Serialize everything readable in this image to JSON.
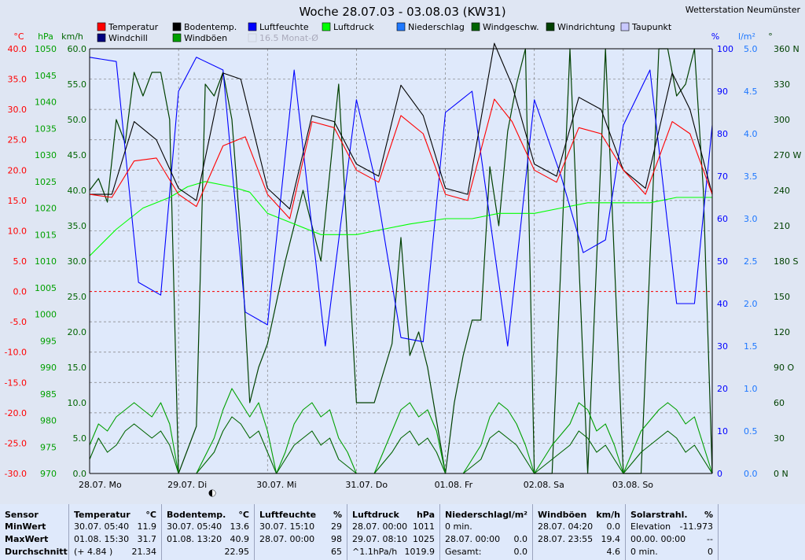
{
  "header": {
    "title": "Woche 28.07.03 - 03.08.03 (KW31)",
    "station": "Wetterstation Neumünster"
  },
  "legend": [
    {
      "label": "Temperatur",
      "color": "#ff0000"
    },
    {
      "label": "Bodentemp.",
      "color": "#000000"
    },
    {
      "label": "Luftfeuchte",
      "color": "#0000ff"
    },
    {
      "label": "Luftdruck",
      "color": "#00ff00"
    },
    {
      "label": "Niederschlag",
      "color": "#1e78ff"
    },
    {
      "label": "Windgeschw.",
      "color": "#006400"
    },
    {
      "label": "Windrichtung",
      "color": "#004000"
    },
    {
      "label": "Taupunkt",
      "color": "#c8c8ff"
    },
    {
      "label": "Windchill",
      "color": "#000080"
    },
    {
      "label": "Windböen",
      "color": "#00a000"
    },
    {
      "label": "16.5 Monat-Ø",
      "color": "#e8e8ee"
    }
  ],
  "axis_units": {
    "temp": "°C",
    "press": "hPa",
    "wind": "km/h",
    "hum": "%",
    "rain": "l/m²",
    "dir": "°"
  },
  "colors": {
    "plot_bg": "#dfe9fb",
    "grid": "#808080",
    "temp_axis": "#ff0000",
    "press_axis": "#00a000",
    "wind_axis": "#006400",
    "hum_axis": "#0000ff",
    "rain_axis": "#1e78ff",
    "dir_axis": "#004000"
  },
  "chart_data": {
    "type": "line",
    "x_range_days": [
      0,
      7
    ],
    "x_ticks": [
      {
        "day": 0,
        "label": "28.07.  Mo"
      },
      {
        "day": 1,
        "label": "29.07.  Di"
      },
      {
        "day": 2,
        "label": "30.07.  Mi"
      },
      {
        "day": 3,
        "label": "31.07.  Do"
      },
      {
        "day": 4,
        "label": "01.08.  Fr"
      },
      {
        "day": 5,
        "label": "02.08.  Sa"
      },
      {
        "day": 6,
        "label": "03.08.  So"
      }
    ],
    "axes": {
      "temp": {
        "range": [
          -30,
          40
        ],
        "ticks": [
          "40.0",
          "35.0",
          "30.0",
          "25.0",
          "20.0",
          "15.0",
          "10.0",
          "5.0",
          "0.0",
          "-5.0",
          "-10.0",
          "-15.0",
          "-20.0",
          "-25.0",
          "-30.0"
        ]
      },
      "press": {
        "range": [
          970,
          1050
        ],
        "ticks": [
          "1050",
          "1045",
          "1040",
          "1035",
          "1030",
          "1025",
          "1020",
          "1015",
          "1010",
          "1005",
          "1000",
          "995",
          "990",
          "985",
          "980",
          "975",
          "970"
        ]
      },
      "wind": {
        "range": [
          0,
          60
        ],
        "ticks": [
          "60.0",
          "55.0",
          "50.0",
          "45.0",
          "40.0",
          "35.0",
          "30.0",
          "25.0",
          "20.0",
          "15.0",
          "10.0",
          "5.0",
          "0.0"
        ]
      },
      "hum": {
        "range": [
          0,
          100
        ],
        "ticks": [
          "100",
          "90",
          "80",
          "70",
          "60",
          "50",
          "40",
          "30",
          "20",
          "10",
          "0"
        ]
      },
      "rain": {
        "range": [
          0,
          5
        ],
        "ticks": [
          "5.0",
          "4.5",
          "4.0",
          "3.5",
          "3.0",
          "2.5",
          "2.0",
          "1.5",
          "1.0",
          "0.5",
          "0.0"
        ]
      },
      "dir": {
        "range": [
          0,
          360
        ],
        "ticks": [
          "360 N",
          "330",
          "300",
          "270 W",
          "240",
          "210",
          "180 S",
          "150",
          "120",
          "90 O",
          "60",
          "30",
          "0  N"
        ]
      }
    },
    "monthly_avg_temp": 16.5,
    "series": [
      {
        "name": "Temperatur",
        "axis": "temp",
        "x": [
          0,
          0.25,
          0.5,
          0.75,
          1,
          1.2,
          1.5,
          1.75,
          2,
          2.25,
          2.5,
          2.75,
          3,
          3.25,
          3.5,
          3.75,
          4,
          4.25,
          4.55,
          4.75,
          5,
          5.25,
          5.5,
          5.75,
          6,
          6.25,
          6.55,
          6.75,
          7
        ],
        "values": [
          16,
          15.5,
          21.5,
          22,
          16,
          14,
          24,
          25.5,
          16,
          12,
          28,
          27,
          20,
          18,
          29,
          26,
          16,
          15,
          31.7,
          28,
          20,
          18,
          27,
          26,
          20,
          16,
          28,
          26,
          16
        ]
      },
      {
        "name": "Bodentemp.",
        "axis": "temp",
        "x": [
          0,
          0.25,
          0.5,
          0.75,
          1,
          1.2,
          1.5,
          1.7,
          2,
          2.25,
          2.5,
          2.75,
          3,
          3.25,
          3.5,
          3.75,
          4,
          4.25,
          4.55,
          4.75,
          5,
          5.25,
          5.5,
          5.75,
          6,
          6.25,
          6.55,
          6.75,
          7
        ],
        "values": [
          16,
          16,
          28,
          25,
          17,
          15,
          36,
          35,
          17,
          13.6,
          29,
          28,
          21,
          19,
          34,
          29,
          17,
          16,
          40.9,
          34,
          21,
          19,
          32,
          30,
          20,
          17,
          36,
          30,
          16
        ]
      },
      {
        "name": "Luftfeuchte",
        "axis": "hum",
        "x": [
          0,
          0.3,
          0.55,
          0.8,
          1,
          1.2,
          1.5,
          1.75,
          2,
          2.3,
          2.65,
          3,
          3.2,
          3.5,
          3.75,
          4,
          4.3,
          4.7,
          5,
          5.3,
          5.55,
          5.8,
          6,
          6.3,
          6.6,
          6.8,
          7
        ],
        "values": [
          98,
          97,
          45,
          42,
          90,
          98,
          95,
          38,
          35,
          95,
          30,
          88,
          70,
          32,
          31,
          85,
          90,
          30,
          88,
          70,
          52,
          55,
          82,
          95,
          40,
          40,
          82
        ]
      },
      {
        "name": "Luftdruck",
        "axis": "press",
        "x": [
          0,
          0.3,
          0.6,
          0.9,
          1.1,
          1.3,
          1.6,
          1.8,
          2,
          2.3,
          2.6,
          3,
          3.3,
          3.6,
          4,
          4.3,
          4.6,
          5,
          5.3,
          5.6,
          6,
          6.3,
          6.6,
          6.9,
          7
        ],
        "values": [
          1011,
          1016,
          1020,
          1022,
          1024,
          1025,
          1024,
          1023,
          1019,
          1017,
          1015,
          1015,
          1016,
          1017,
          1018,
          1018,
          1019,
          1019,
          1020,
          1021,
          1021,
          1021,
          1022,
          1022,
          1022
        ]
      },
      {
        "name": "Windgeschw.",
        "axis": "wind",
        "x": [
          0,
          0.1,
          0.2,
          0.3,
          0.4,
          0.5,
          0.6,
          0.7,
          0.8,
          0.9,
          1,
          1.1,
          1.2,
          1.4,
          1.5,
          1.6,
          1.7,
          1.8,
          1.9,
          2,
          2.1,
          2.2,
          2.3,
          2.4,
          2.5,
          2.6,
          2.7,
          2.8,
          2.9,
          3,
          3.2,
          3.4,
          3.5,
          3.6,
          3.7,
          3.8,
          3.9,
          4,
          4.2,
          4.4,
          4.5,
          4.6,
          4.7,
          4.8,
          4.9,
          5,
          5.2,
          5.4,
          5.5,
          5.6,
          5.7,
          5.8,
          5.9,
          6,
          6.2,
          6.4,
          6.5,
          6.6,
          6.7,
          6.8,
          6.9,
          7
        ],
        "values": [
          2,
          5,
          3,
          4,
          6,
          7,
          6,
          5,
          6,
          4,
          0,
          0,
          0,
          3,
          6,
          8,
          7,
          5,
          6,
          3,
          0,
          2,
          4,
          5,
          6,
          4,
          5,
          2,
          1,
          0,
          0,
          3,
          5,
          6,
          4,
          5,
          3,
          0,
          0,
          2,
          5,
          6,
          5,
          4,
          2,
          0,
          2,
          4,
          6,
          5,
          3,
          4,
          2,
          0,
          3,
          5,
          6,
          5,
          3,
          4,
          2,
          0
        ]
      },
      {
        "name": "Windböen",
        "axis": "wind",
        "x": [
          0,
          0.1,
          0.2,
          0.3,
          0.4,
          0.5,
          0.6,
          0.7,
          0.8,
          0.9,
          1,
          1.1,
          1.2,
          1.4,
          1.5,
          1.6,
          1.7,
          1.8,
          1.9,
          2,
          2.1,
          2.2,
          2.3,
          2.4,
          2.5,
          2.6,
          2.7,
          2.8,
          2.9,
          3,
          3.2,
          3.4,
          3.5,
          3.6,
          3.7,
          3.8,
          3.9,
          4,
          4.2,
          4.4,
          4.5,
          4.6,
          4.7,
          4.8,
          4.9,
          5,
          5.2,
          5.4,
          5.5,
          5.6,
          5.7,
          5.8,
          5.9,
          6,
          6.2,
          6.4,
          6.5,
          6.6,
          6.7,
          6.8,
          6.9,
          7
        ],
        "values": [
          4,
          7,
          6,
          8,
          9,
          10,
          9,
          8,
          10,
          7,
          0,
          0,
          0,
          5,
          9,
          12,
          10,
          8,
          10,
          6,
          0,
          3,
          7,
          9,
          10,
          8,
          9,
          5,
          3,
          0,
          0,
          6,
          9,
          10,
          8,
          9,
          6,
          0,
          0,
          4,
          8,
          10,
          9,
          7,
          4,
          0,
          4,
          7,
          10,
          9,
          6,
          7,
          4,
          0,
          6,
          9,
          10,
          9,
          7,
          8,
          4,
          0
        ]
      },
      {
        "name": "Windrichtung",
        "axis": "dir",
        "x": [
          0,
          0.1,
          0.2,
          0.3,
          0.4,
          0.5,
          0.6,
          0.7,
          0.8,
          0.9,
          1,
          1.2,
          1.3,
          1.4,
          1.5,
          1.6,
          1.7,
          1.8,
          1.9,
          2,
          2.2,
          2.4,
          2.6,
          2.8,
          3,
          3.2,
          3.4,
          3.5,
          3.6,
          3.7,
          3.8,
          4,
          4.1,
          4.2,
          4.3,
          4.4,
          4.5,
          4.6,
          4.7,
          4.8,
          4.9,
          5,
          5.2,
          5.4,
          5.6,
          5.8,
          6,
          6.2,
          6.4,
          6.5,
          6.6,
          6.7,
          6.8,
          6.9,
          7
        ],
        "values": [
          240,
          250,
          230,
          300,
          280,
          340,
          320,
          340,
          340,
          300,
          0,
          40,
          330,
          320,
          340,
          300,
          200,
          60,
          90,
          110,
          180,
          240,
          180,
          330,
          60,
          60,
          110,
          200,
          100,
          120,
          90,
          0,
          60,
          100,
          130,
          130,
          260,
          210,
          290,
          330,
          360,
          0,
          0,
          360,
          0,
          360,
          0,
          0,
          360,
          360,
          320,
          330,
          360,
          240,
          0
        ]
      }
    ]
  },
  "stats": {
    "sensor_col": {
      "header": "Sensor",
      "rows": [
        "MinWert",
        "MaxWert",
        "Durchschnitt"
      ]
    },
    "columns": [
      {
        "name": "Temperatur",
        "unit": "°C",
        "rows": [
          [
            "30.07.  05:40",
            "11.9"
          ],
          [
            "01.08.  15:30",
            "31.7"
          ],
          [
            "(+ 4.84 )",
            "21.34"
          ]
        ]
      },
      {
        "name": "Bodentemp.",
        "unit": "°C",
        "rows": [
          [
            "30.07.  05:40",
            "13.6"
          ],
          [
            "01.08.  13:20",
            "40.9"
          ],
          [
            "",
            "22.95"
          ]
        ]
      },
      {
        "name": "Luftfeuchte",
        "unit": "%",
        "rows": [
          [
            "30.07.  15:10",
            "29"
          ],
          [
            "28.07.  00:00",
            "98"
          ],
          [
            "",
            "65"
          ]
        ]
      },
      {
        "name": "Luftdruck",
        "unit": "hPa",
        "rows": [
          [
            "28.07.  00:00",
            "1011"
          ],
          [
            "29.07.  08:10",
            "1025"
          ],
          [
            "^1.1hPa/h",
            "1019.9"
          ]
        ]
      },
      {
        "name": "Niederschlag",
        "unit": "l/m²",
        "rows": [
          [
            "0 min.",
            ""
          ],
          [
            "28.07.  00:00",
            "0.0"
          ],
          [
            "Gesamt:",
            "0.0"
          ]
        ]
      },
      {
        "name": "Windböen",
        "unit": "km/h",
        "rows": [
          [
            "28.07.  04:20",
            "0.0"
          ],
          [
            "28.07.  23:55",
            "19.4"
          ],
          [
            "",
            "4.6"
          ]
        ]
      },
      {
        "name": "Solarstrahl.",
        "unit": "%",
        "rows": [
          [
            "Elevation",
            "-11.973"
          ],
          [
            "00.00.  00:00",
            "--"
          ],
          [
            "0 min.",
            "0"
          ]
        ]
      }
    ]
  }
}
